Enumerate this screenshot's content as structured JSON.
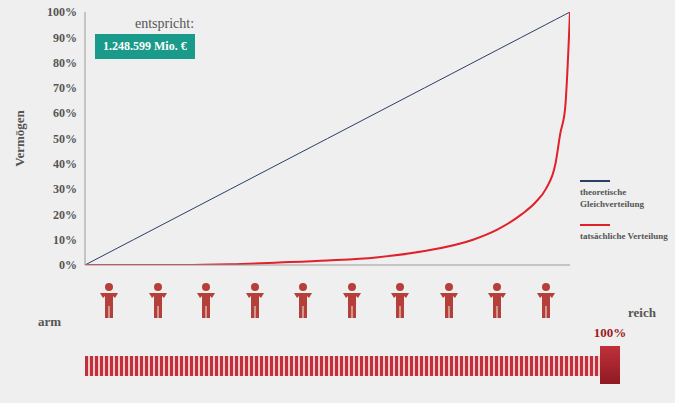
{
  "chart_data": {
    "type": "line",
    "annotation_title": "entspricht:",
    "annotation_value": "1.248.599 Mio. €",
    "y_label": "Vermögen",
    "x_end_labels": [
      "arm",
      "reich"
    ],
    "slider": {
      "value": 100,
      "label": "100%"
    },
    "x": [
      0,
      10,
      20,
      30,
      40,
      50,
      60,
      70,
      80,
      85,
      90,
      93,
      95,
      97,
      98,
      99,
      100
    ],
    "series": [
      {
        "name": "theoretische Gleichverteilung",
        "color": "#2c3e66",
        "values": [
          0,
          10,
          20,
          30,
          40,
          50,
          60,
          70,
          80,
          85,
          90,
          93,
          95,
          97,
          98,
          99,
          100
        ]
      },
      {
        "name": "tatsächliche Verteilung",
        "color": "#e0202a",
        "values": [
          0,
          0,
          0,
          0.3,
          1,
          1.8,
          3,
          5.5,
          10,
          14,
          20,
          25,
          30,
          40,
          52,
          62,
          100
        ]
      }
    ],
    "xlim": [
      0,
      100
    ],
    "ylim": [
      0,
      100
    ],
    "yticks": [
      {
        "value": 0,
        "label": "0%"
      },
      {
        "value": 10,
        "label": "10%"
      },
      {
        "value": 20,
        "label": "20%"
      },
      {
        "value": 30,
        "label": "30%"
      },
      {
        "value": 40,
        "label": "40%"
      },
      {
        "value": 50,
        "label": "50%"
      },
      {
        "value": 60,
        "label": "60%"
      },
      {
        "value": 70,
        "label": "70%"
      },
      {
        "value": 80,
        "label": "80%"
      },
      {
        "value": 90,
        "label": "90%"
      },
      {
        "value": 100,
        "label": "100%"
      }
    ],
    "grid": false,
    "tick_labels": "y",
    "legend": "right"
  }
}
